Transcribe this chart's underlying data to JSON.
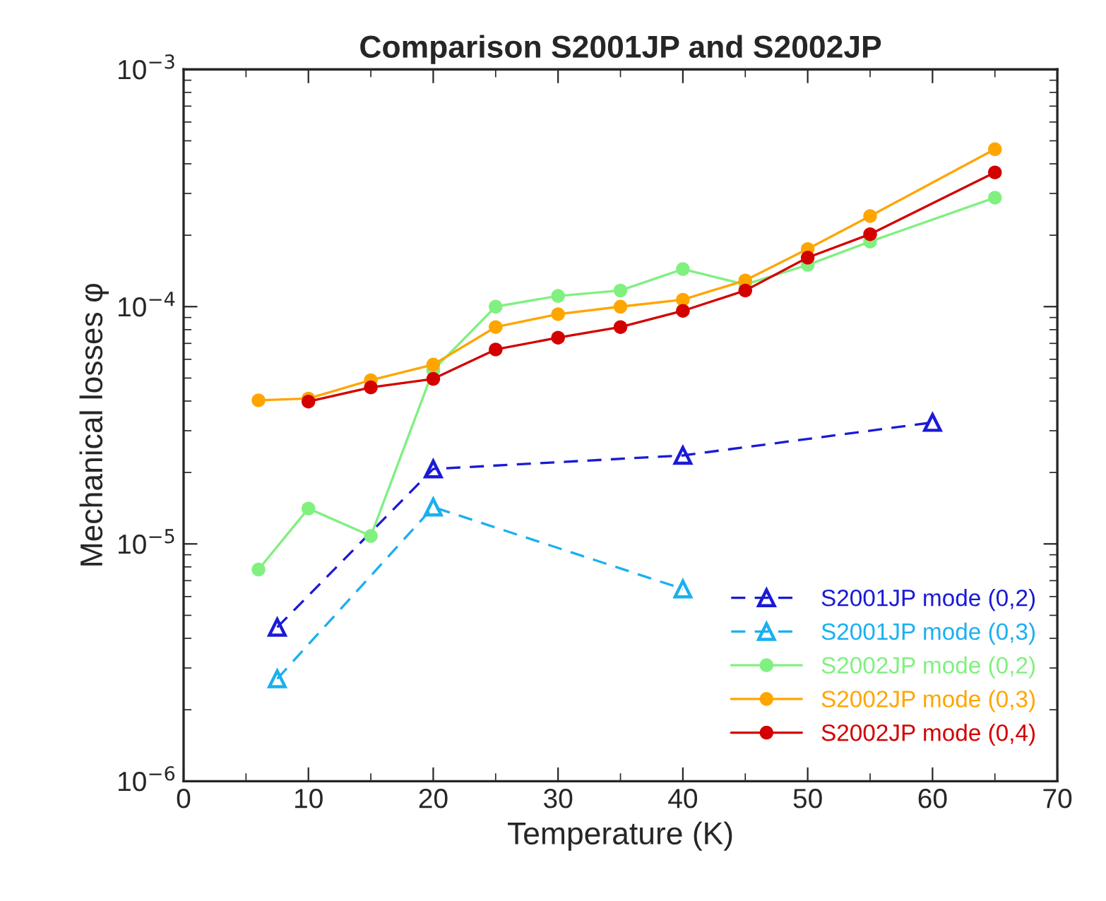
{
  "chart_data": {
    "type": "line",
    "title": "Comparison S2001JP and S2002JP",
    "xlabel": "Temperature (K)",
    "ylabel": "Mechanical losses φ",
    "log": "y",
    "xlim": [
      0,
      70
    ],
    "xticks": [
      0,
      10,
      20,
      30,
      40,
      50,
      60,
      70
    ],
    "ylim": [
      1e-06,
      0.001
    ],
    "yticks": [
      {
        "value": 1e-06,
        "label": "10$^{−6}$"
      },
      {
        "value": 1e-05,
        "label": "10$^{−5}$"
      },
      {
        "value": 0.0001,
        "label": "10$^{−4}$"
      },
      {
        "value": 0.001,
        "label": "10$^{−3}$"
      }
    ],
    "grid": false,
    "legend": "bottom right",
    "series": [
      {
        "name": "S2001JP mode (0,2)",
        "color": "#1a1ad6",
        "marker": "triangle",
        "line_style": "dashed",
        "x": [
          7.5,
          20,
          40,
          60
        ],
        "values": [
          4.45e-06,
          2.07e-05,
          2.36e-05,
          3.25e-05
        ]
      },
      {
        "name": "S2001JP mode (0,3)",
        "color": "#1ab0f0",
        "marker": "triangle",
        "line_style": "dashed",
        "x": [
          7.5,
          20,
          40
        ],
        "values": [
          2.7e-06,
          1.43e-05,
          6.46e-06
        ]
      },
      {
        "name": "S2002JP mode (0,2)",
        "color": "#80f080",
        "marker": "circle",
        "line_style": "solid",
        "x": [
          6,
          10,
          15,
          20,
          25,
          30,
          35,
          40,
          45,
          50,
          55,
          65
        ],
        "values": [
          7.8e-06,
          1.41e-05,
          1.08e-05,
          5.4e-05,
          0.0001,
          0.000111,
          0.000117,
          0.000144,
          0.000124,
          0.00015,
          0.000188,
          0.000288
        ]
      },
      {
        "name": "S2002JP mode (0,3)",
        "color": "#ffa500",
        "marker": "circle",
        "line_style": "solid",
        "x": [
          6,
          10,
          15,
          20,
          25,
          30,
          35,
          40,
          45,
          50,
          55,
          65
        ],
        "values": [
          4.03e-05,
          4.1e-05,
          4.9e-05,
          5.7e-05,
          8.2e-05,
          9.3e-05,
          0.0001,
          0.000107,
          0.000129,
          0.000175,
          0.000241,
          0.000461
        ]
      },
      {
        "name": "S2002JP mode (0,4)",
        "color": "#d40000",
        "marker": "circle",
        "line_style": "solid",
        "x": [
          10,
          15,
          20,
          25,
          30,
          35,
          40,
          45,
          50,
          55,
          65
        ],
        "values": [
          3.98e-05,
          4.57e-05,
          4.96e-05,
          6.6e-05,
          7.4e-05,
          8.2e-05,
          9.6e-05,
          0.000117,
          0.000161,
          0.000202,
          0.000368
        ]
      }
    ]
  }
}
